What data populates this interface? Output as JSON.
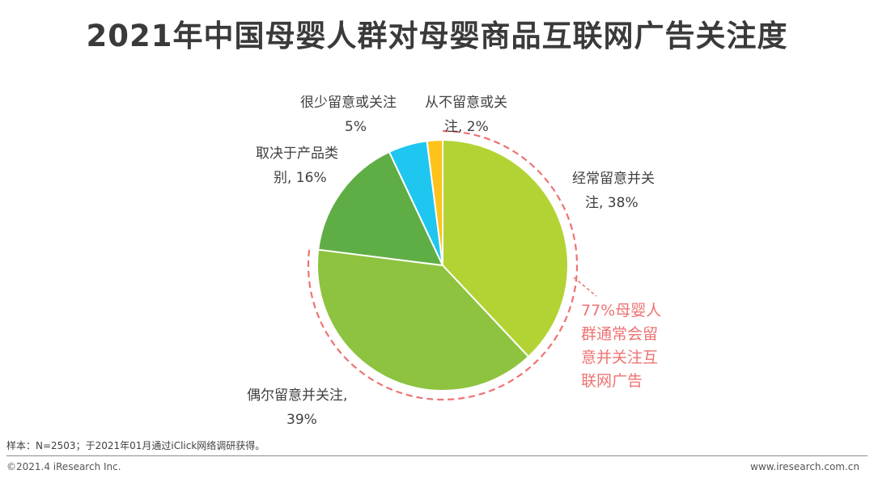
{
  "header": {
    "title": "2021年中国母婴人群对母婴商品互联网广告关注度"
  },
  "chart_data": {
    "type": "pie",
    "slices": [
      {
        "name": "经常留意并关注",
        "value": 38,
        "color": "#b3d335",
        "label_lines": [
          "经常留意并关",
          "注, 38%"
        ]
      },
      {
        "name": "偶尔留意并关注",
        "value": 39,
        "color": "#8dc33f",
        "label_lines": [
          "偶尔留意并关注,",
          "39%"
        ]
      },
      {
        "name": "取决于产品类别",
        "value": 16,
        "color": "#5fae45",
        "label_lines": [
          "取决于产品类",
          "别, 16%"
        ]
      },
      {
        "name": "很少留意或关注",
        "value": 5,
        "color": "#1fc6f0",
        "label_lines": [
          "很少留意或关注",
          "5%"
        ]
      },
      {
        "name": "从不留意或关注",
        "value": 2,
        "color": "#ffc21a",
        "label_lines": [
          "从不留意或关",
          "注, 2%"
        ]
      }
    ],
    "annotation": {
      "lines": [
        "77%母婴人",
        "群通常会留",
        "意并关注互",
        "联网广告"
      ],
      "color": "#ee7373"
    }
  },
  "footer": {
    "note": "样本：N=2503；于2021年01月通过iClick网络调研获得。",
    "copyright": "©2021.4 iResearch Inc.",
    "website": "www.iresearch.com.cn"
  }
}
